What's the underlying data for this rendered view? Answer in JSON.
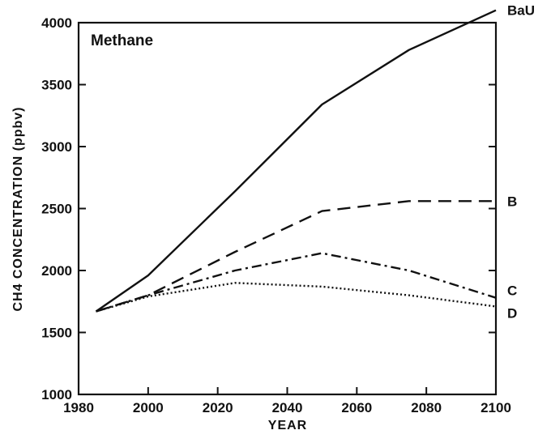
{
  "chart_data": {
    "type": "line",
    "title": "Methane",
    "xlabel": "YEAR",
    "ylabel": "CH4 CONCENTRATION (ppbv)",
    "xlim": [
      1980,
      2100
    ],
    "ylim": [
      1000,
      4000
    ],
    "x_ticks": [
      "1980",
      "2000",
      "2020",
      "2040",
      "2060",
      "2080",
      "2100"
    ],
    "y_ticks": [
      "1000",
      "1500",
      "2000",
      "2500",
      "3000",
      "3500",
      "4000"
    ],
    "grid": false,
    "legend": "series labels at right edge",
    "series": [
      {
        "name": "BaU",
        "style": "solid",
        "x": [
          1985,
          2000,
          2025,
          2050,
          2075,
          2100
        ],
        "y": [
          1670,
          1960,
          2640,
          3340,
          3780,
          4100
        ]
      },
      {
        "name": "B",
        "style": "dashed",
        "x": [
          1985,
          2000,
          2025,
          2050,
          2075,
          2100
        ],
        "y": [
          1670,
          1800,
          2150,
          2480,
          2560,
          2560
        ]
      },
      {
        "name": "C",
        "style": "dash-dot",
        "x": [
          1985,
          2000,
          2025,
          2050,
          2075,
          2100
        ],
        "y": [
          1670,
          1800,
          2000,
          2140,
          2000,
          1780
        ]
      },
      {
        "name": "D",
        "style": "dotted",
        "x": [
          1985,
          2000,
          2025,
          2050,
          2075,
          2100
        ],
        "y": [
          1670,
          1790,
          1900,
          1870,
          1800,
          1710
        ]
      }
    ]
  },
  "colors": {
    "ink": "#111111",
    "background": "#ffffff"
  }
}
